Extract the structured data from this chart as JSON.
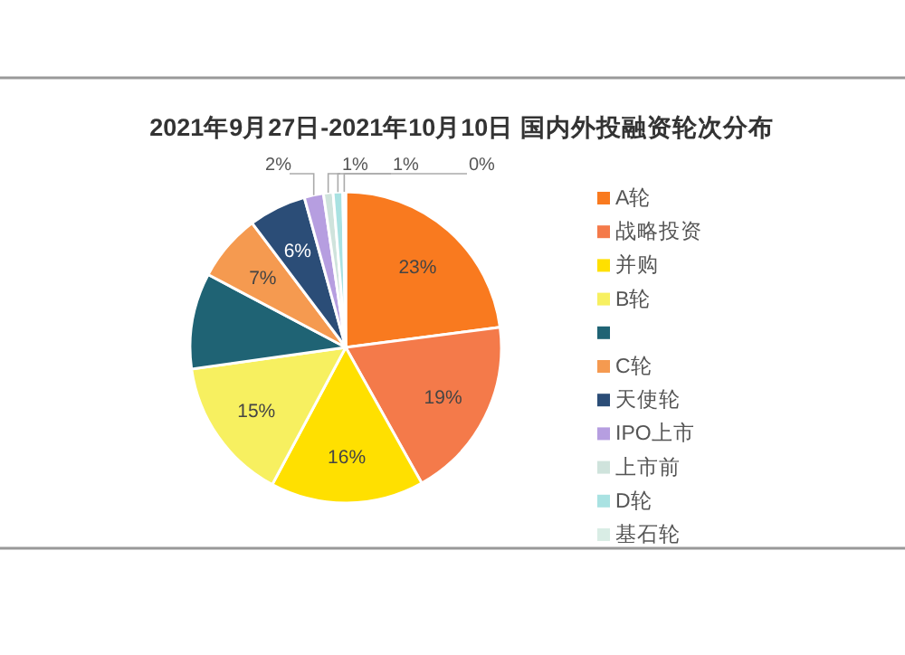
{
  "chart_data": {
    "type": "pie",
    "title": "2021年9月27日-2021年10月10日 国内外投融资轮次分布",
    "categories": [
      "A轮",
      "战略投资",
      "并购",
      "B轮",
      null,
      "C轮",
      "天使轮",
      "IPO上市",
      "上市前",
      "D轮",
      "基石轮"
    ],
    "values": [
      23,
      19,
      16,
      15,
      10,
      7,
      6,
      2,
      1,
      1,
      0.3
    ],
    "value_labels": [
      "23%",
      "19%",
      "16%",
      "15%",
      null,
      "7%",
      "6%",
      "2%",
      "1%",
      "1%",
      "0%"
    ],
    "colors": [
      "#f97a1f",
      "#f47a4a",
      "#ffe000",
      "#f7f060",
      "#1f6374",
      "#f59a50",
      "#2b4d77",
      "#b69ee0",
      "#cfe3dc",
      "#a9e2e2",
      "#d9ede5"
    ],
    "legend": "right"
  }
}
